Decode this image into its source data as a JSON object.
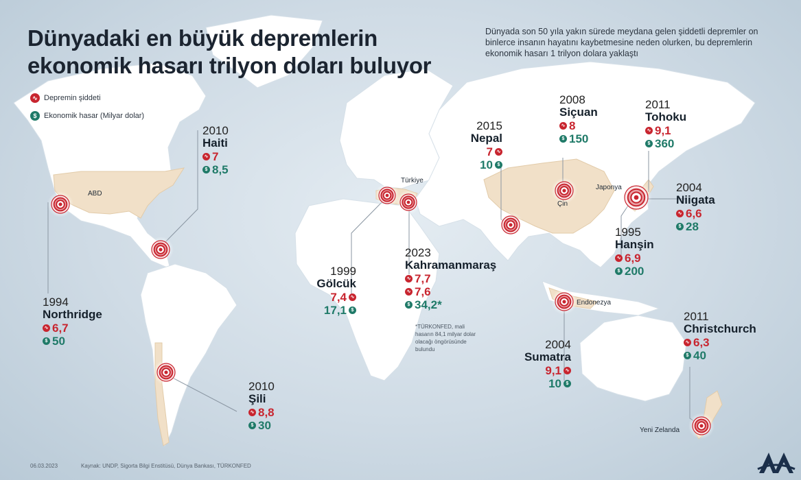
{
  "title_line1": "Dünyadaki en büyük depremlerin",
  "title_line2": "ekonomik hasarı trilyon doları buluyor",
  "intro": "Dünyada son 50 yıla yakın sürede meydana gelen şiddetli depremler on binlerce insanın hayatını kaybetmesine neden olurken, bu depremlerin ekonomik hasarı 1 trilyon dolara yaklaştı",
  "legend": {
    "magnitude": "Depremin şiddeti",
    "damage": "Ekonomik hasar (Milyar dolar)"
  },
  "legend_icons": {
    "magnitude": "seismograph-icon",
    "damage": "dollar-icon"
  },
  "colors": {
    "magnitude": "#c8252f",
    "damage": "#1f7a68",
    "highlight_land": "#f1e0c8"
  },
  "places": {
    "abd": "ABD",
    "turkiye": "Türkiye",
    "cin": "Çin",
    "japonya": "Japonya",
    "endonezya": "Endonezya",
    "yeni_zelanda": "Yeni Zelanda"
  },
  "quakes": {
    "haiti": {
      "year": "2010",
      "name": "Haiti",
      "magnitude": [
        "7"
      ],
      "damage": "8,5"
    },
    "northridge": {
      "year": "1994",
      "name": "Northridge",
      "magnitude": [
        "6,7"
      ],
      "damage": "50"
    },
    "sili": {
      "year": "2010",
      "name": "Şili",
      "magnitude": [
        "8,8"
      ],
      "damage": "30"
    },
    "golcuk": {
      "year": "1999",
      "name": "Gölcük",
      "magnitude": [
        "7,4"
      ],
      "damage": "17,1"
    },
    "kahramanmaras": {
      "year": "2023",
      "name": "Kahramanmaraş",
      "magnitude": [
        "7,7",
        "7,6"
      ],
      "damage": "34,2*"
    },
    "nepal": {
      "year": "2015",
      "name": "Nepal",
      "magnitude": [
        "7"
      ],
      "damage": "10"
    },
    "sicuan": {
      "year": "2008",
      "name": "Siçuan",
      "magnitude": [
        "8"
      ],
      "damage": "150"
    },
    "tohoku": {
      "year": "2011",
      "name": "Tohoku",
      "magnitude": [
        "9,1"
      ],
      "damage": "360"
    },
    "niigata": {
      "year": "2004",
      "name": "Niigata",
      "magnitude": [
        "6,6"
      ],
      "damage": "28"
    },
    "hansin": {
      "year": "1995",
      "name": "Hanşin",
      "magnitude": [
        "6,9"
      ],
      "damage": "200"
    },
    "sumatra": {
      "year": "2004",
      "name": "Sumatra",
      "magnitude": [
        "9,1"
      ],
      "damage": "10"
    },
    "christchurch": {
      "year": "2011",
      "name": "Christchurch",
      "magnitude": [
        "6,3"
      ],
      "damage": "40"
    }
  },
  "footnote": "*TÜRKONFED, mali hasarın 84,1 milyar dolar olacağı öngörüsünde bulundu",
  "date": "06.03.2023",
  "source": "Kaynak: UNDP, Sigorta Bilgi Enstitüsü, Dünya Bankası, TÜRKONFED",
  "logo": "AA"
}
